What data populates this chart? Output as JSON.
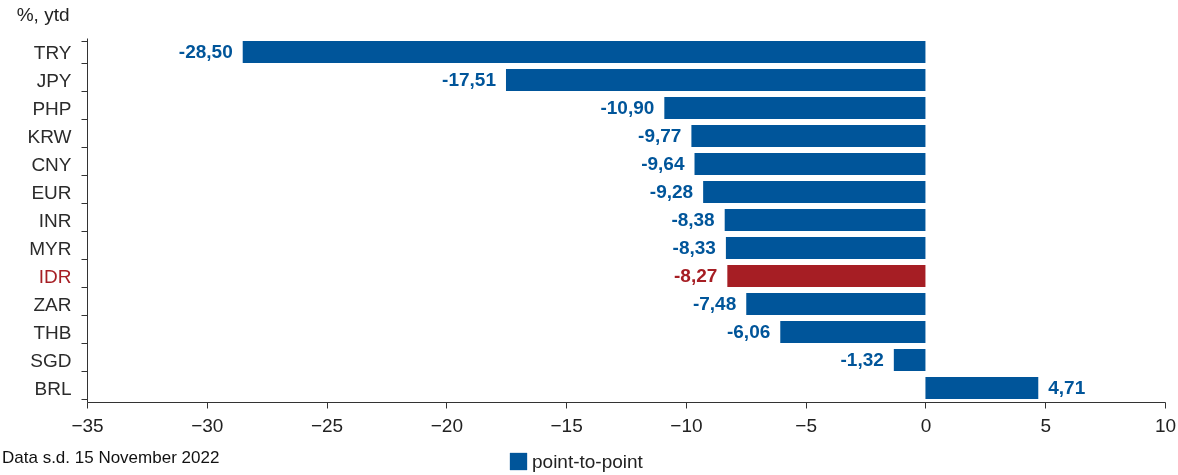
{
  "chart_data": {
    "type": "bar",
    "orientation": "horizontal",
    "ylabel": "%, ytd",
    "categories": [
      "TRY",
      "JPY",
      "PHP",
      "KRW",
      "CNY",
      "EUR",
      "INR",
      "MYR",
      "IDR",
      "ZAR",
      "THB",
      "SGD",
      "BRL"
    ],
    "series": [
      {
        "name": "point-to-point",
        "color": "#00559a",
        "colors": [
          "#00559a",
          "#00559a",
          "#00559a",
          "#00559a",
          "#00559a",
          "#00559a",
          "#00559a",
          "#00559a",
          "#a61e24",
          "#00559a",
          "#00559a",
          "#00559a",
          "#00559a"
        ],
        "values": [
          -28.5,
          -17.51,
          -10.9,
          -9.77,
          -9.64,
          -9.28,
          -8.38,
          -8.33,
          -8.27,
          -7.48,
          -6.06,
          -1.32,
          4.71
        ],
        "value_labels": [
          "-28,50",
          "-17,51",
          "-10,90",
          "-9,77",
          "-9,64",
          "-9,28",
          "-8,38",
          "-8,33",
          "-8,27",
          "-7,48",
          "-6,06",
          "-1,32",
          "4,71"
        ]
      }
    ],
    "xlim": [
      -35,
      10
    ],
    "xticks": [
      -35,
      -30,
      -25,
      -20,
      -15,
      -10,
      -5,
      0,
      5,
      10
    ],
    "grid": false,
    "legend": "bottom",
    "annotations": [
      "Data s.d. 15 November 2022"
    ]
  }
}
